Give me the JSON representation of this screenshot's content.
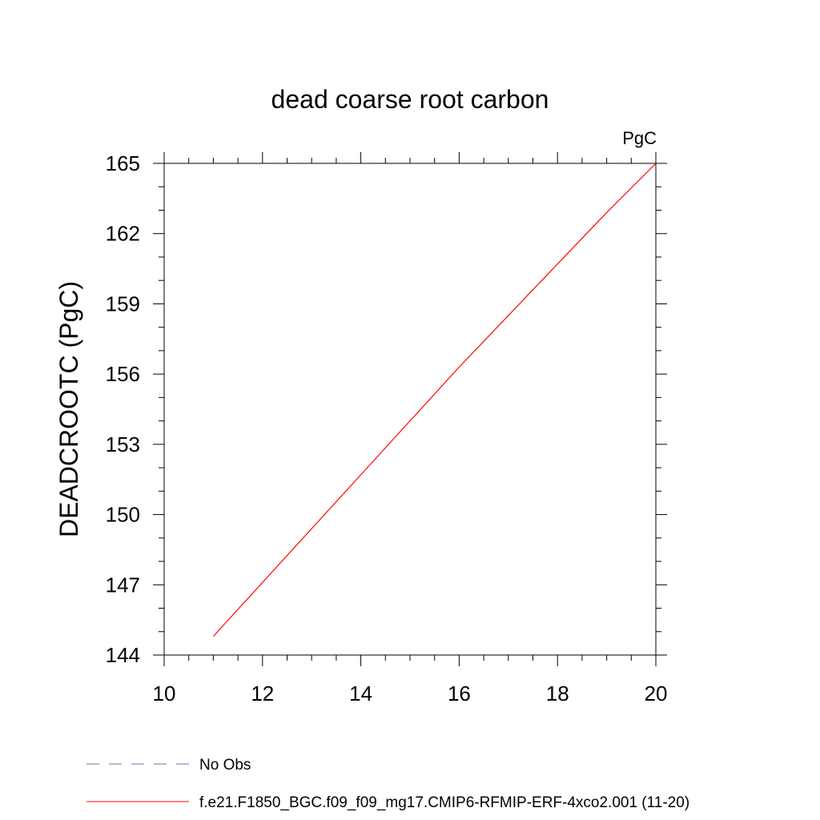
{
  "chart_data": {
    "type": "line",
    "title": "dead coarse root carbon",
    "units_label": "PgC",
    "ylabel": "DEADCROOTC  (PgC)",
    "xlabel": "",
    "xlim": [
      10,
      20
    ],
    "ylim": [
      144,
      165
    ],
    "x_ticks": [
      10,
      12,
      14,
      16,
      18,
      20
    ],
    "y_ticks": [
      144,
      147,
      150,
      153,
      156,
      159,
      162,
      165
    ],
    "grid": false,
    "legend_position": "bottom",
    "series": [
      {
        "name": "f.e21.F1850_BGC.f09_f09_mg17.CMIP6-RFMIP-ERF-4xco2.001 (11-20)",
        "color": "#ff0000",
        "style": "solid",
        "x": [
          11,
          12,
          13,
          14,
          15,
          16,
          17,
          18,
          19,
          20
        ],
        "y": [
          144.8,
          147.1,
          149.4,
          151.7,
          154.0,
          156.3,
          158.5,
          160.7,
          162.9,
          165.0
        ]
      }
    ],
    "legend": [
      {
        "label": "No Obs",
        "color": "#7b6bb0",
        "style": "dashed"
      },
      {
        "label": "f.e21.F1850_BGC.f09_f09_mg17.CMIP6-RFMIP-ERF-4xco2.001 (11-20)",
        "color": "#ff0000",
        "style": "solid"
      }
    ]
  }
}
